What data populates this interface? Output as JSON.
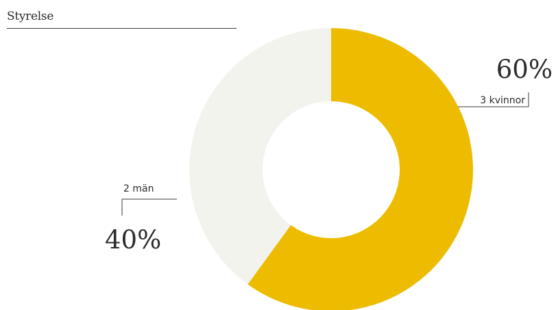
{
  "header": {
    "title": "Styrelse"
  },
  "chart_data": {
    "type": "pie",
    "variant": "donut",
    "categories": [
      "3 kvinnor",
      "2 män"
    ],
    "values": [
      60,
      40
    ],
    "value_labels": [
      "60%",
      "40%"
    ],
    "colors": [
      "#EDBC00",
      "#F3F3EE"
    ],
    "title": "Styrelse"
  }
}
